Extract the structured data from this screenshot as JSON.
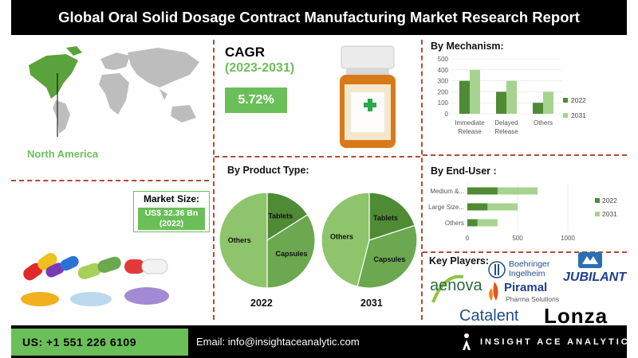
{
  "header": {
    "title": "Global Oral Solid Dosage Contract Manufacturing Market Research Report"
  },
  "region": {
    "label": "North America"
  },
  "market_size": {
    "label": "Market Size:",
    "value": "US$ 32.36 Bn",
    "year": "(2022)"
  },
  "cagr": {
    "label": "CAGR",
    "period": "(2023-2031)",
    "value": "5.72%"
  },
  "product_type": {
    "title": "By Product Type:",
    "year_1": "2022",
    "year_2": "2031"
  },
  "mechanism": {
    "title": "By Mechanism:"
  },
  "end_user": {
    "title": "By End-User :"
  },
  "players": {
    "title": "Key Players:",
    "logos": [
      "Boehringer Ingelheim",
      "JUBILANT",
      "aenova",
      "Piramal",
      "Pharma Solutions",
      "Catalent",
      "Lonza"
    ]
  },
  "footer": {
    "phone": "US: +1 551 226 6109",
    "email": "Email: info@insightaceanalytic.com",
    "brand": "INSIGHT ACE ANALYTIC"
  },
  "colors": {
    "dark_green": "#4f8a35",
    "light_green": "#a6d38f",
    "accent": "#6bbf59",
    "divider": "#b54a33"
  },
  "chart_data": [
    {
      "id": "mechanism",
      "type": "bar",
      "title": "By Mechanism:",
      "categories": [
        "Immediate Release",
        "Delayed Release",
        "Others"
      ],
      "category_lines": [
        [
          "Immediate",
          "Release"
        ],
        [
          "Delayed",
          "Release"
        ],
        [
          "Others"
        ]
      ],
      "series": [
        {
          "name": "2022",
          "values": [
            300,
            200,
            100
          ],
          "color": "#4f8a35"
        },
        {
          "name": "2031",
          "values": [
            400,
            300,
            200
          ],
          "color": "#a6d38f"
        }
      ],
      "ylim": [
        0,
        500
      ],
      "yticks": [
        0,
        100,
        200,
        300,
        400,
        500
      ],
      "legend": "right"
    },
    {
      "id": "end_user",
      "type": "bar",
      "orientation": "horizontal",
      "title": "By End-User :",
      "categories": [
        "Medium &...",
        "Large Size...",
        "Others"
      ],
      "series": [
        {
          "name": "2022",
          "values": [
            300,
            200,
            100
          ],
          "color": "#4f8a35"
        },
        {
          "name": "2031",
          "values": [
            700,
            500,
            300
          ],
          "color": "#a6d38f"
        }
      ],
      "xlim": [
        0,
        1000
      ],
      "xticks": [
        0,
        500,
        1000
      ],
      "legend": "right"
    },
    {
      "id": "pie_2022",
      "type": "pie",
      "title": "2022",
      "labels": [
        "Tablets",
        "Capsules",
        "Others"
      ],
      "values": [
        16,
        34,
        50
      ],
      "colors": [
        "#4f8a35",
        "#6ba84f",
        "#8ec46b"
      ]
    },
    {
      "id": "pie_2031",
      "type": "pie",
      "title": "2031",
      "labels": [
        "Tablets",
        "Capsules",
        "Others"
      ],
      "values": [
        20,
        34,
        46
      ],
      "colors": [
        "#4f8a35",
        "#6ba84f",
        "#8ec46b"
      ]
    }
  ]
}
